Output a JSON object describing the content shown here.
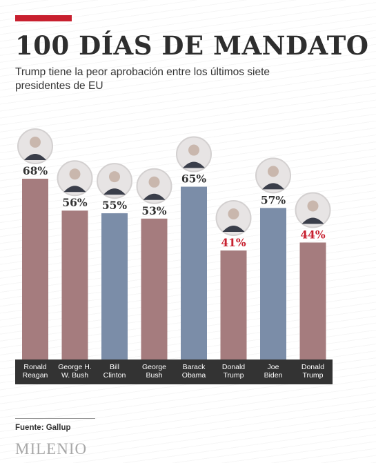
{
  "header": {
    "accent_color": "#c8202f",
    "title": "100 DÍAS DE MANDATO",
    "subtitle": "Trump tiene la peor aprobación entre los últimos siete presidentes de EU"
  },
  "chart_data": {
    "type": "bar",
    "categories": [
      "Ronald Reagan",
      "George H. W. Bush",
      "Bill Clinton",
      "George Bush",
      "Barack Obama",
      "Donald Trump",
      "Joe Biden",
      "Donald Trump"
    ],
    "label_lines": [
      [
        "Ronald",
        "Reagan"
      ],
      [
        "George H.",
        "W. Bush"
      ],
      [
        "Bill",
        "Clinton"
      ],
      [
        "George",
        "Bush"
      ],
      [
        "Barack",
        "Obama"
      ],
      [
        "Donald",
        "Trump"
      ],
      [
        "Joe",
        "Biden"
      ],
      [
        "Donald",
        "Trump"
      ]
    ],
    "values": [
      68,
      56,
      55,
      53,
      65,
      41,
      57,
      44
    ],
    "value_labels": [
      "68%",
      "56%",
      "55%",
      "53%",
      "65%",
      "41%",
      "57%",
      "44%"
    ],
    "party": [
      "republican",
      "republican",
      "democrat",
      "republican",
      "democrat",
      "republican",
      "democrat",
      "republican"
    ],
    "highlight": [
      false,
      false,
      false,
      false,
      false,
      true,
      false,
      true
    ],
    "ylim": [
      0,
      70
    ],
    "colors": {
      "republican": "#a57c7e",
      "democrat": "#7b8da8",
      "label_default": "#333333",
      "label_highlight": "#c8202f",
      "label_band": "#333333",
      "label_band_text": "#ffffff"
    }
  },
  "footer": {
    "source": "Fuente: Gallup",
    "logo": "MILENIO"
  }
}
